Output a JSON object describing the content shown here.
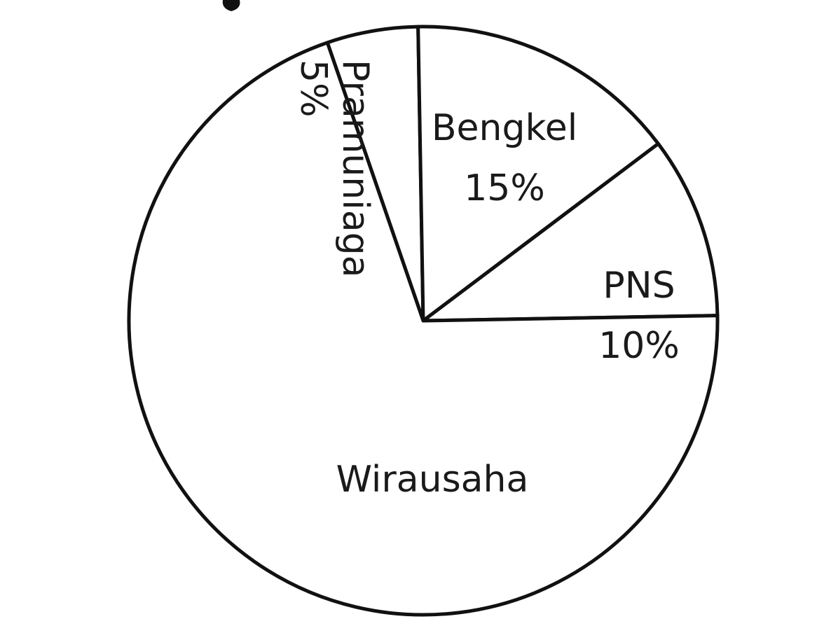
{
  "chart_data": {
    "type": "pie",
    "title": "",
    "slices": [
      {
        "label": "Pramuniaga",
        "value": 5,
        "value_label": "5%"
      },
      {
        "label": "Bengkel",
        "value": 15,
        "value_label": "15%"
      },
      {
        "label": "PNS",
        "value": 10,
        "value_label": "10%"
      },
      {
        "label": "Wirausaha",
        "value": 70,
        "value_label": ""
      }
    ],
    "colors": {
      "fill": "#ffffff",
      "stroke": "#111111",
      "text": "#1a1a1a"
    }
  }
}
